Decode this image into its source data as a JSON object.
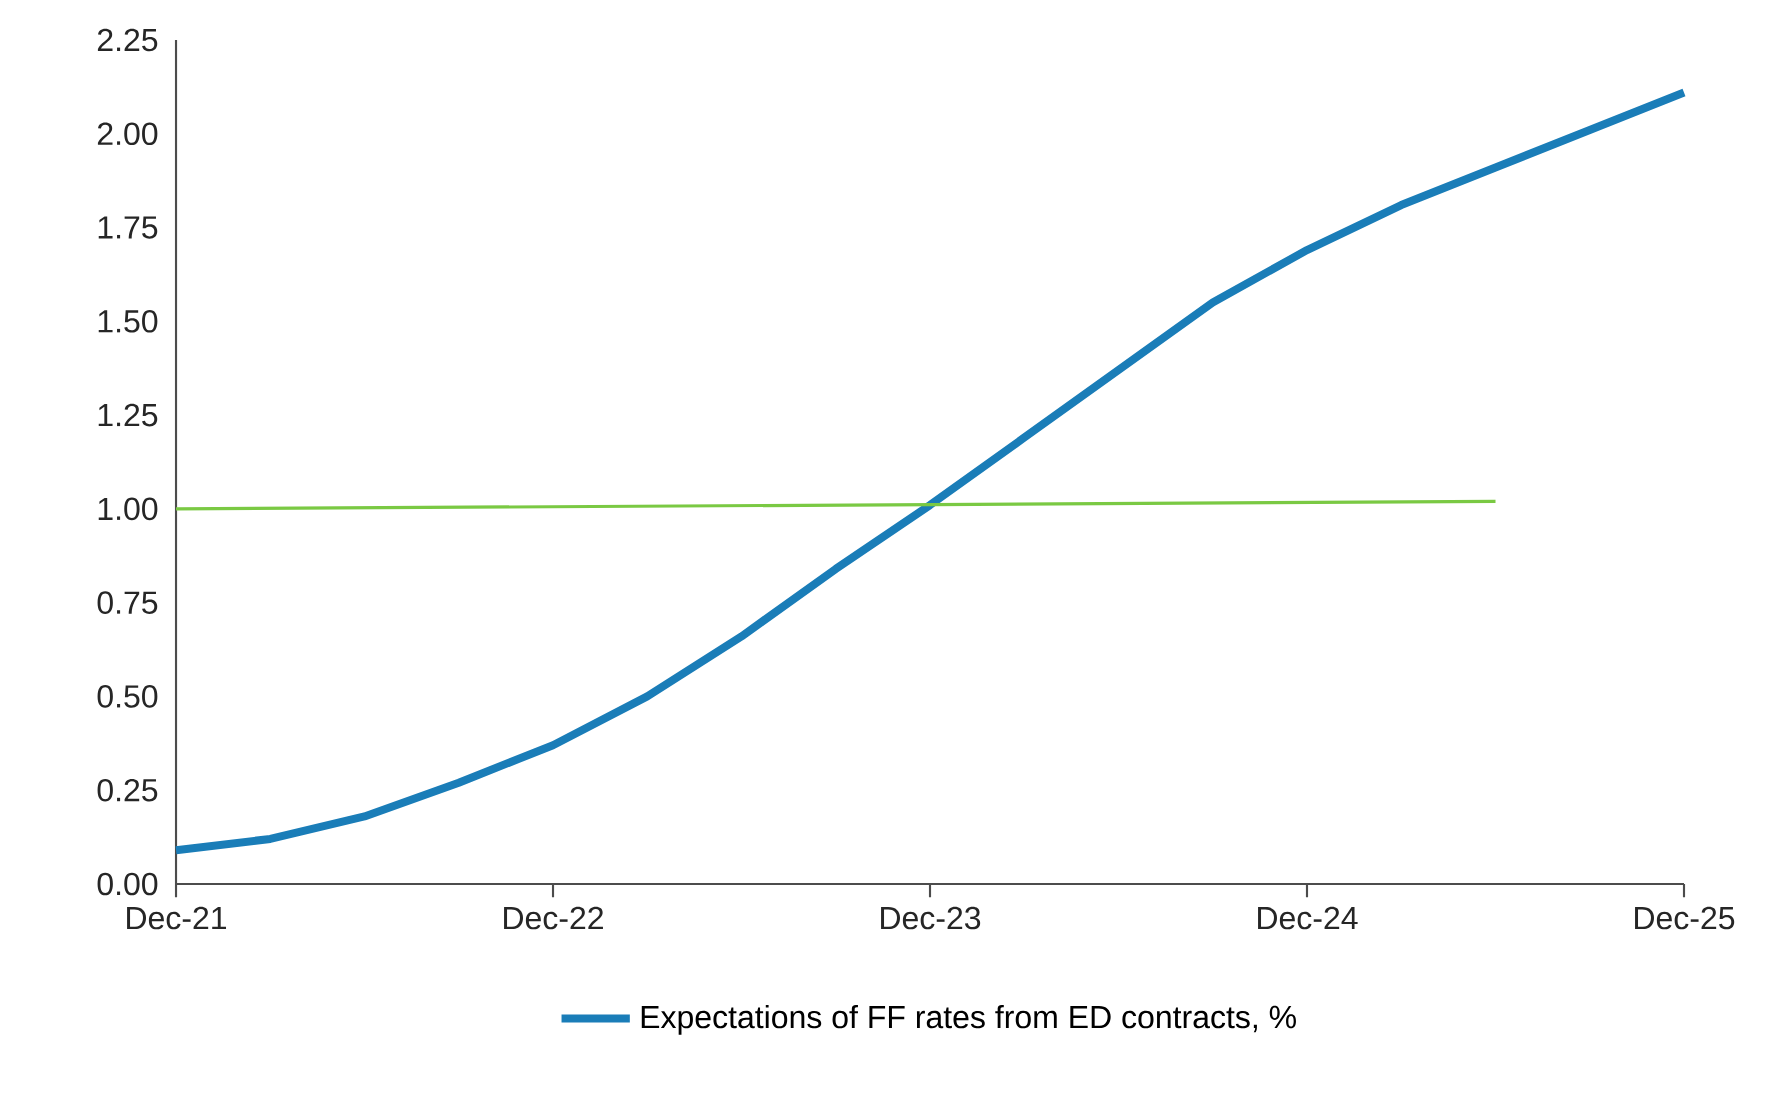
{
  "chart_data": {
    "type": "line",
    "x": [
      "2021-12",
      "2022-03",
      "2022-06",
      "2022-09",
      "2022-12",
      "2023-03",
      "2023-06",
      "2023-09",
      "2023-12",
      "2024-03",
      "2024-06",
      "2024-09",
      "2024-12",
      "2025-03",
      "2025-06",
      "2025-09",
      "2025-12"
    ],
    "series": [
      {
        "name": "Expectations of FF rates from ED contracts, %",
        "color": "#1a7db8",
        "values": [
          0.09,
          0.12,
          0.18,
          0.27,
          0.37,
          0.5,
          0.66,
          0.84,
          1.01,
          1.19,
          1.37,
          1.55,
          1.69,
          1.81,
          1.91,
          2.01,
          2.11
        ]
      },
      {
        "color": "#7ac943",
        "x": [
          "2021-12",
          "2025-06"
        ],
        "values": [
          1.0,
          1.02
        ]
      }
    ],
    "xlim": [
      "2021-12",
      "2025-12"
    ],
    "xticks": [
      {
        "value": "2021-12",
        "label": "Dec-21"
      },
      {
        "value": "2022-12",
        "label": "Dec-22"
      },
      {
        "value": "2023-12",
        "label": "Dec-23"
      },
      {
        "value": "2024-12",
        "label": "Dec-24"
      },
      {
        "value": "2025-12",
        "label": "Dec-25"
      }
    ],
    "ylim": [
      0,
      2.25
    ],
    "yticks": [
      {
        "value": 0,
        "label": "0.00"
      },
      {
        "value": 0.25,
        "label": "0.25"
      },
      {
        "value": 0.5,
        "label": "0.50"
      },
      {
        "value": 0.75,
        "label": "0.75"
      },
      {
        "value": 1,
        "label": "1.00"
      },
      {
        "value": 1.25,
        "label": "1.25"
      },
      {
        "value": 1.5,
        "label": "1.50"
      },
      {
        "value": 1.75,
        "label": "1.75"
      },
      {
        "value": 2,
        "label": "2.00"
      },
      {
        "value": 2.25,
        "label": "2.25"
      }
    ],
    "grid": false,
    "legend": "bottom"
  }
}
